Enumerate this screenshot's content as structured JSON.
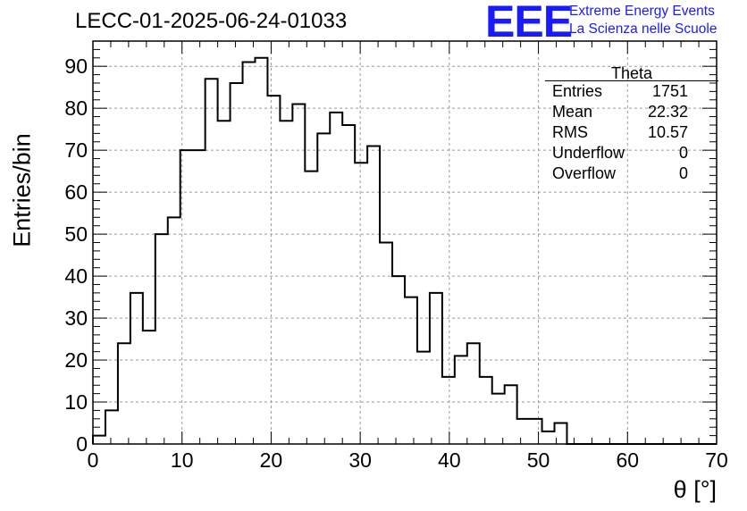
{
  "title": "LECC-01-2025-06-24-01033",
  "logo": {
    "mark": "EEE",
    "line1": "Extreme Energy Events",
    "line2": "La Scienza nelle Scuole",
    "color": "#1a1aff"
  },
  "stats": {
    "title": "Theta",
    "rows": [
      {
        "label": "Entries",
        "value": "1751"
      },
      {
        "label": "Mean",
        "value": "22.32"
      },
      {
        "label": "RMS",
        "value": "10.57"
      },
      {
        "label": "Underflow",
        "value": "0"
      },
      {
        "label": "Overflow",
        "value": "0"
      }
    ]
  },
  "chart_data": {
    "type": "histogram",
    "title": "LECC-01-2025-06-24-01033",
    "xlabel": "θ [°]",
    "ylabel": "Entries/bin",
    "xlim": [
      0,
      70
    ],
    "ylim": [
      0,
      96
    ],
    "grid": true,
    "bin_width": 1.4,
    "bin_edges_start": 0,
    "values": [
      2,
      8,
      24,
      36,
      27,
      50,
      54,
      70,
      70,
      87,
      77,
      86,
      91,
      92,
      83,
      77,
      81,
      65,
      74,
      79,
      76,
      67,
      71,
      48,
      40,
      35,
      22,
      36,
      16,
      21,
      24,
      16,
      12,
      14,
      6,
      6,
      3,
      5,
      0,
      0,
      0,
      0,
      0,
      0,
      0,
      0,
      0,
      0,
      0,
      0
    ],
    "x_ticks": [
      "0",
      "10",
      "20",
      "30",
      "40",
      "50",
      "60",
      "70"
    ],
    "y_ticks": [
      "0",
      "10",
      "20",
      "30",
      "40",
      "50",
      "60",
      "70",
      "80",
      "90"
    ],
    "line_color": "#000000"
  }
}
